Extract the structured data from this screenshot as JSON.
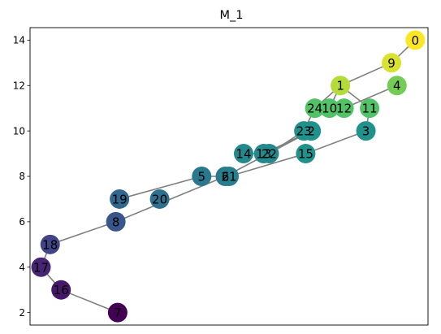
{
  "chart_data": {
    "type": "network",
    "title": "M_1",
    "xlabel": "",
    "ylabel": "",
    "x_ticks_shown": false,
    "y_ticks": [
      2,
      4,
      6,
      8,
      10,
      12,
      14
    ],
    "xlim": [
      3.4,
      25.2
    ],
    "ylim": [
      1.45,
      14.55
    ],
    "grid": false,
    "colormap": "viridis",
    "color_range": [
      0,
      24
    ],
    "edge_color": "#808080",
    "nodes": [
      {
        "id": "0",
        "x": 24.5,
        "y": 14.0,
        "value": 24
      },
      {
        "id": "1",
        "x": 20.4,
        "y": 12.0,
        "value": 22
      },
      {
        "id": "2",
        "x": 18.8,
        "y": 10.0,
        "value": 15
      },
      {
        "id": "3",
        "x": 21.8,
        "y": 10.0,
        "value": 15
      },
      {
        "id": "4",
        "x": 23.5,
        "y": 12.0,
        "value": 20
      },
      {
        "id": "5",
        "x": 12.8,
        "y": 8.0,
        "value": 12
      },
      {
        "id": "6",
        "x": 14.1,
        "y": 8.0,
        "value": 12
      },
      {
        "id": "7",
        "x": 8.2,
        "y": 2.0,
        "value": 0
      },
      {
        "id": "8",
        "x": 8.1,
        "y": 6.0,
        "value": 8
      },
      {
        "id": "9",
        "x": 23.2,
        "y": 13.0,
        "value": 23
      },
      {
        "id": "10",
        "x": 19.8,
        "y": 11.0,
        "value": 19
      },
      {
        "id": "11",
        "x": 22.0,
        "y": 11.0,
        "value": 19
      },
      {
        "id": "12",
        "x": 20.6,
        "y": 11.0,
        "value": 19
      },
      {
        "id": "13",
        "x": 16.2,
        "y": 9.0,
        "value": 14
      },
      {
        "id": "14",
        "x": 15.1,
        "y": 9.0,
        "value": 14
      },
      {
        "id": "15",
        "x": 18.5,
        "y": 9.0,
        "value": 15
      },
      {
        "id": "16",
        "x": 5.1,
        "y": 3.0,
        "value": 2
      },
      {
        "id": "17",
        "x": 4.0,
        "y": 4.0,
        "value": 3
      },
      {
        "id": "18",
        "x": 4.5,
        "y": 5.0,
        "value": 6
      },
      {
        "id": "19",
        "x": 8.3,
        "y": 7.0,
        "value": 10
      },
      {
        "id": "20",
        "x": 10.5,
        "y": 7.0,
        "value": 11
      },
      {
        "id": "21",
        "x": 14.3,
        "y": 8.0,
        "value": 13
      },
      {
        "id": "22",
        "x": 16.5,
        "y": 9.0,
        "value": 14
      },
      {
        "id": "23",
        "x": 18.4,
        "y": 10.0,
        "value": 15
      },
      {
        "id": "24",
        "x": 19.0,
        "y": 11.0,
        "value": 19
      }
    ],
    "edges": [
      [
        "0",
        "9"
      ],
      [
        "9",
        "1"
      ],
      [
        "1",
        "24"
      ],
      [
        "1",
        "10"
      ],
      [
        "1",
        "11"
      ],
      [
        "4",
        "12"
      ],
      [
        "11",
        "3"
      ],
      [
        "3",
        "15"
      ],
      [
        "15",
        "21"
      ],
      [
        "24",
        "23"
      ],
      [
        "23",
        "2"
      ],
      [
        "23",
        "22"
      ],
      [
        "2",
        "13"
      ],
      [
        "2",
        "6"
      ],
      [
        "14",
        "13"
      ],
      [
        "5",
        "21"
      ],
      [
        "5",
        "19"
      ],
      [
        "6",
        "21"
      ],
      [
        "6",
        "8"
      ],
      [
        "8",
        "18"
      ],
      [
        "18",
        "17"
      ],
      [
        "17",
        "16"
      ],
      [
        "16",
        "7"
      ]
    ]
  }
}
